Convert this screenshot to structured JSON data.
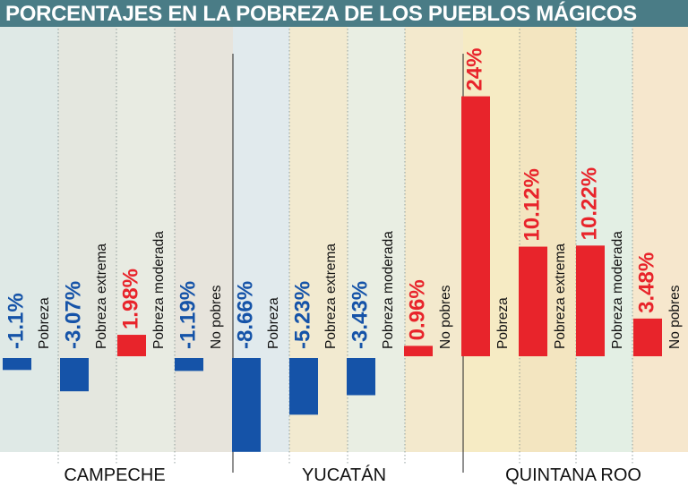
{
  "title": "PORCENTAJES EN LA POBREZA DE LOS PUEBLOS MÁGICOS",
  "colors": {
    "positive": "#e8242b",
    "negative": "#1553a8",
    "title_bar": "#4a7c86",
    "background": "#ffffff"
  },
  "chart_data": {
    "type": "bar",
    "title": "PORCENTAJES EN LA POBREZA DE LOS PUEBLOS MÁGICOS",
    "unit": "%",
    "groups": [
      "CAMPECHE",
      "YUCATÁN",
      "QUINTANA ROO"
    ],
    "categories": [
      "Pobreza",
      "Pobreza extrema",
      "Pobreza moderada",
      "No pobres"
    ],
    "series": [
      {
        "name": "CAMPECHE",
        "values": [
          -1.1,
          -3.07,
          1.98,
          -1.19
        ],
        "labels": [
          "-1.1%",
          "-3.07%",
          "1.98%",
          "-1.19%"
        ]
      },
      {
        "name": "YUCATÁN",
        "values": [
          -8.66,
          -5.23,
          -3.43,
          0.96
        ],
        "labels": [
          "-8.66%",
          "-5.23%",
          "-3.43%",
          "0.96%"
        ]
      },
      {
        "name": "QUINTANA ROO",
        "values": [
          24,
          10.12,
          10.22,
          3.48
        ],
        "labels": [
          "24%",
          "10.12%",
          "10.22%",
          "3.48%"
        ]
      }
    ]
  }
}
